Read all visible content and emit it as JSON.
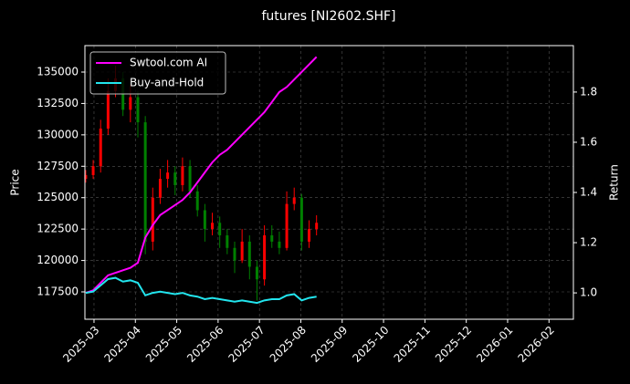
{
  "chart_data": {
    "type": "candlestick",
    "title": "futures [NI2602.SHF]",
    "y_label": "Price",
    "y2_label": "Return",
    "xlim": [
      -0.22,
      11.59
    ],
    "xticks": [
      {
        "value": 0,
        "label": "2025-03"
      },
      {
        "value": 1,
        "label": "2025-04"
      },
      {
        "value": 2,
        "label": "2025-05"
      },
      {
        "value": 3,
        "label": "2025-06"
      },
      {
        "value": 4,
        "label": "2025-07"
      },
      {
        "value": 5,
        "label": "2025-08"
      },
      {
        "value": 6,
        "label": "2025-09"
      },
      {
        "value": 7,
        "label": "2025-10"
      },
      {
        "value": 8,
        "label": "2025-11"
      },
      {
        "value": 9,
        "label": "2025-12"
      },
      {
        "value": 10,
        "label": "2026-01"
      },
      {
        "value": 11,
        "label": "2026-02"
      }
    ],
    "ylim": [
      115322,
      137106
    ],
    "yticks": [
      117500,
      120000,
      122500,
      125000,
      127500,
      130000,
      132500,
      135000
    ],
    "y2lim": [
      0.895,
      1.985
    ],
    "y2ticks": [
      {
        "value": 1,
        "label": "1.0"
      },
      1.2,
      1.4,
      1.6,
      1.8
    ],
    "grid": true,
    "legend": "upper left",
    "up_color": "#ff0000",
    "down_color": "#008000",
    "x": [
      -0.2,
      -0.02,
      0.16,
      0.34,
      0.52,
      0.7,
      0.88,
      1.06,
      1.24,
      1.42,
      1.6,
      1.78,
      1.96,
      2.14,
      2.32,
      2.5,
      2.68,
      2.86,
      3.04,
      3.22,
      3.4,
      3.58,
      3.76,
      3.94,
      4.12,
      4.3,
      4.48,
      4.66,
      4.84,
      5.02,
      5.2,
      5.38
    ],
    "open": [
      126500,
      126800,
      127500,
      130500,
      133500,
      134500,
      132000,
      133000,
      131000,
      121500,
      125000,
      126500,
      127000,
      126000,
      127500,
      125500,
      124000,
      122500,
      123000,
      122000,
      121000,
      120000,
      121500,
      119500,
      118500,
      122000,
      121500,
      121000,
      124500,
      125000,
      121500,
      122500
    ],
    "high": [
      127200,
      128000,
      131200,
      134500,
      135500,
      135000,
      134000,
      133500,
      131500,
      125800,
      127300,
      128000,
      127500,
      128200,
      128000,
      126000,
      124500,
      123800,
      123500,
      122500,
      121500,
      122500,
      122000,
      120000,
      122800,
      122800,
      122300,
      125500,
      125800,
      125300,
      123200,
      123600
    ],
    "low": [
      126200,
      126500,
      127000,
      130000,
      133000,
      131500,
      131000,
      129800,
      120500,
      120800,
      124500,
      125800,
      125200,
      125500,
      125000,
      123500,
      121500,
      122000,
      121000,
      120500,
      119000,
      119800,
      118500,
      116800,
      118000,
      121000,
      120500,
      120800,
      124000,
      120800,
      121000,
      122000
    ],
    "close": [
      126800,
      127500,
      130500,
      133500,
      134500,
      132000,
      133000,
      131000,
      121500,
      125000,
      126500,
      127000,
      126000,
      127500,
      125500,
      124000,
      122500,
      123000,
      122000,
      121000,
      120000,
      121500,
      119500,
      118500,
      122000,
      121500,
      121000,
      124500,
      125000,
      121500,
      122500,
      123000
    ],
    "series": [
      {
        "name": "Swtool.com AI",
        "color": "#ff00ff",
        "axis": "y2",
        "values": [
          1.0,
          1.01,
          1.04,
          1.07,
          1.08,
          1.09,
          1.1,
          1.12,
          1.22,
          1.27,
          1.31,
          1.33,
          1.35,
          1.37,
          1.4,
          1.44,
          1.48,
          1.52,
          1.55,
          1.57,
          1.6,
          1.63,
          1.66,
          1.69,
          1.72,
          1.76,
          1.8,
          1.82,
          1.85,
          1.88,
          1.91,
          1.94
        ]
      },
      {
        "name": "Buy-and-Hold",
        "color": "#22e5ee",
        "axis": "y2",
        "values": [
          1.0,
          1.005,
          1.03,
          1.055,
          1.06,
          1.045,
          1.05,
          1.04,
          0.99,
          1.0,
          1.005,
          1.0,
          0.995,
          1.0,
          0.99,
          0.985,
          0.975,
          0.98,
          0.975,
          0.97,
          0.965,
          0.97,
          0.965,
          0.96,
          0.97,
          0.975,
          0.975,
          0.99,
          0.995,
          0.97,
          0.98,
          0.985
        ]
      }
    ]
  }
}
